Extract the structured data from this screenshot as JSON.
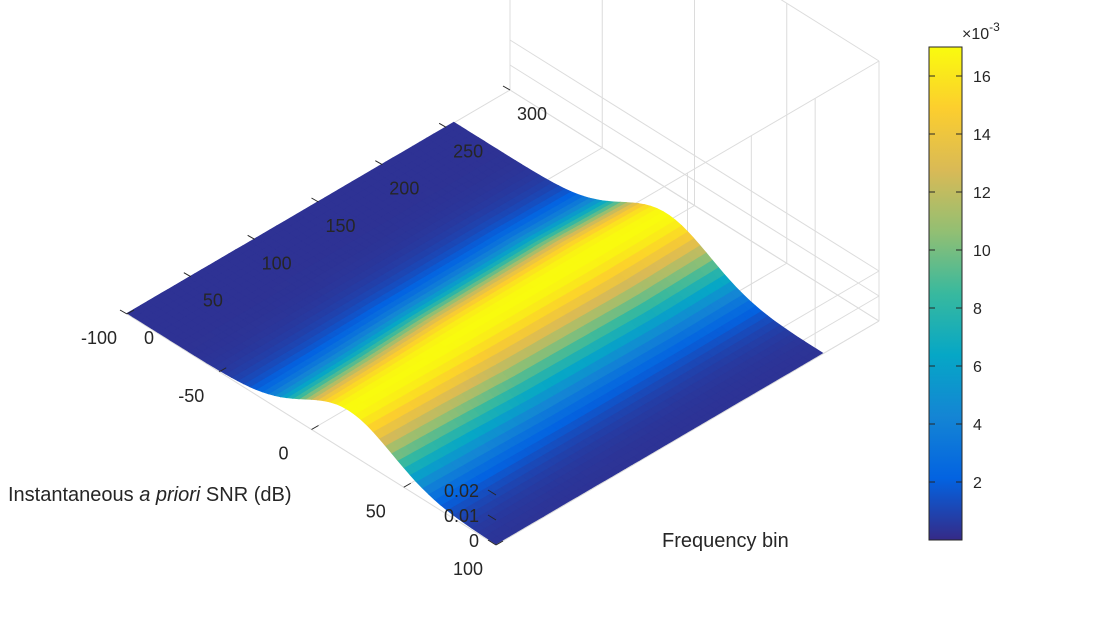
{
  "chart_data": {
    "type": "surface",
    "title": "",
    "xlabel": "Frequency bin",
    "ylabel_parts": [
      "Instantaneous ",
      "a priori",
      " SNR (dB)"
    ],
    "zlabel": "",
    "x_range": [
      0,
      300
    ],
    "y_range": [
      -100,
      100
    ],
    "z_range": [
      0,
      0.02
    ],
    "x_ticks": [
      "0",
      "50",
      "100",
      "150",
      "200",
      "250",
      "300"
    ],
    "y_ticks": [
      "-100",
      "-50",
      "0",
      "50",
      "100"
    ],
    "z_ticks": [
      "0",
      "0.01",
      "0.02"
    ],
    "grid": true,
    "colormap": "parula",
    "colorbar": {
      "range": [
        0,
        0.017
      ],
      "ticks": [
        "2",
        "4",
        "6",
        "8",
        "10",
        "12",
        "14",
        "16"
      ],
      "exponent_base": "×10",
      "exponent_power": "-3",
      "colors": [
        "#352a87",
        "#0363e1",
        "#1485d4",
        "#06a7c6",
        "#38b99e",
        "#92bf73",
        "#d9ba56",
        "#fcce2e",
        "#f9fb0e"
      ]
    },
    "surface": {
      "x_extent": [
        0,
        256
      ],
      "y_extent": [
        -100,
        100
      ],
      "peak_value": 0.017,
      "ridge_y": [
        {
          "x": 0,
          "y": 20
        },
        {
          "x": 50,
          "y": 18
        },
        {
          "x": 100,
          "y": 15
        },
        {
          "x": 150,
          "y": 14
        },
        {
          "x": 200,
          "y": 13
        },
        {
          "x": 256,
          "y": 15
        }
      ],
      "ridge_width_db": 30,
      "edge_value": 0.0003
    }
  }
}
